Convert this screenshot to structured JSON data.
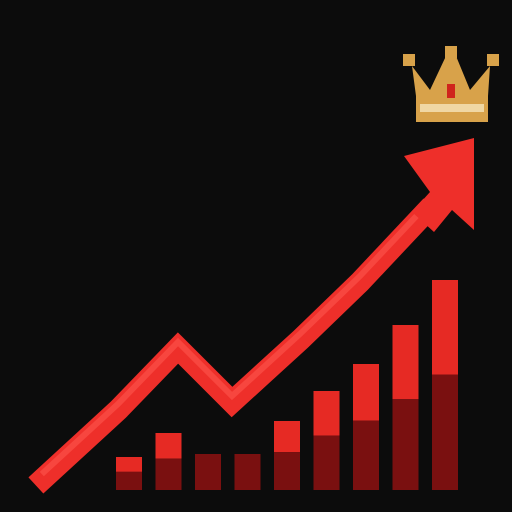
{
  "scene": {
    "background_color": "#0c0c0c",
    "bar_bright_color": "#e62a24",
    "bar_dark_color": "#7a1010",
    "arrow_color": "#ee2f2a",
    "arrow_highlight_color": "#ff5a50",
    "crown_color": "#d8a24a",
    "crown_band_color": "#f0d7a3",
    "crown_jewel_color": "#d0241c"
  },
  "icons": {
    "arrow": "trend-up-arrow-icon",
    "crown": "crown-icon"
  },
  "bars": [
    {
      "level": 0.11,
      "dark_share": 0.55
    },
    {
      "level": 0.19,
      "dark_share": 0.55
    },
    {
      "level": 0.12,
      "dark_share": 1.0
    },
    {
      "level": 0.12,
      "dark_share": 1.0
    },
    {
      "level": 0.23,
      "dark_share": 0.55
    },
    {
      "level": 0.33,
      "dark_share": 0.55
    },
    {
      "level": 0.42,
      "dark_share": 0.55
    },
    {
      "level": 0.55,
      "dark_share": 0.55
    },
    {
      "level": 0.7,
      "dark_share": 0.55
    }
  ]
}
